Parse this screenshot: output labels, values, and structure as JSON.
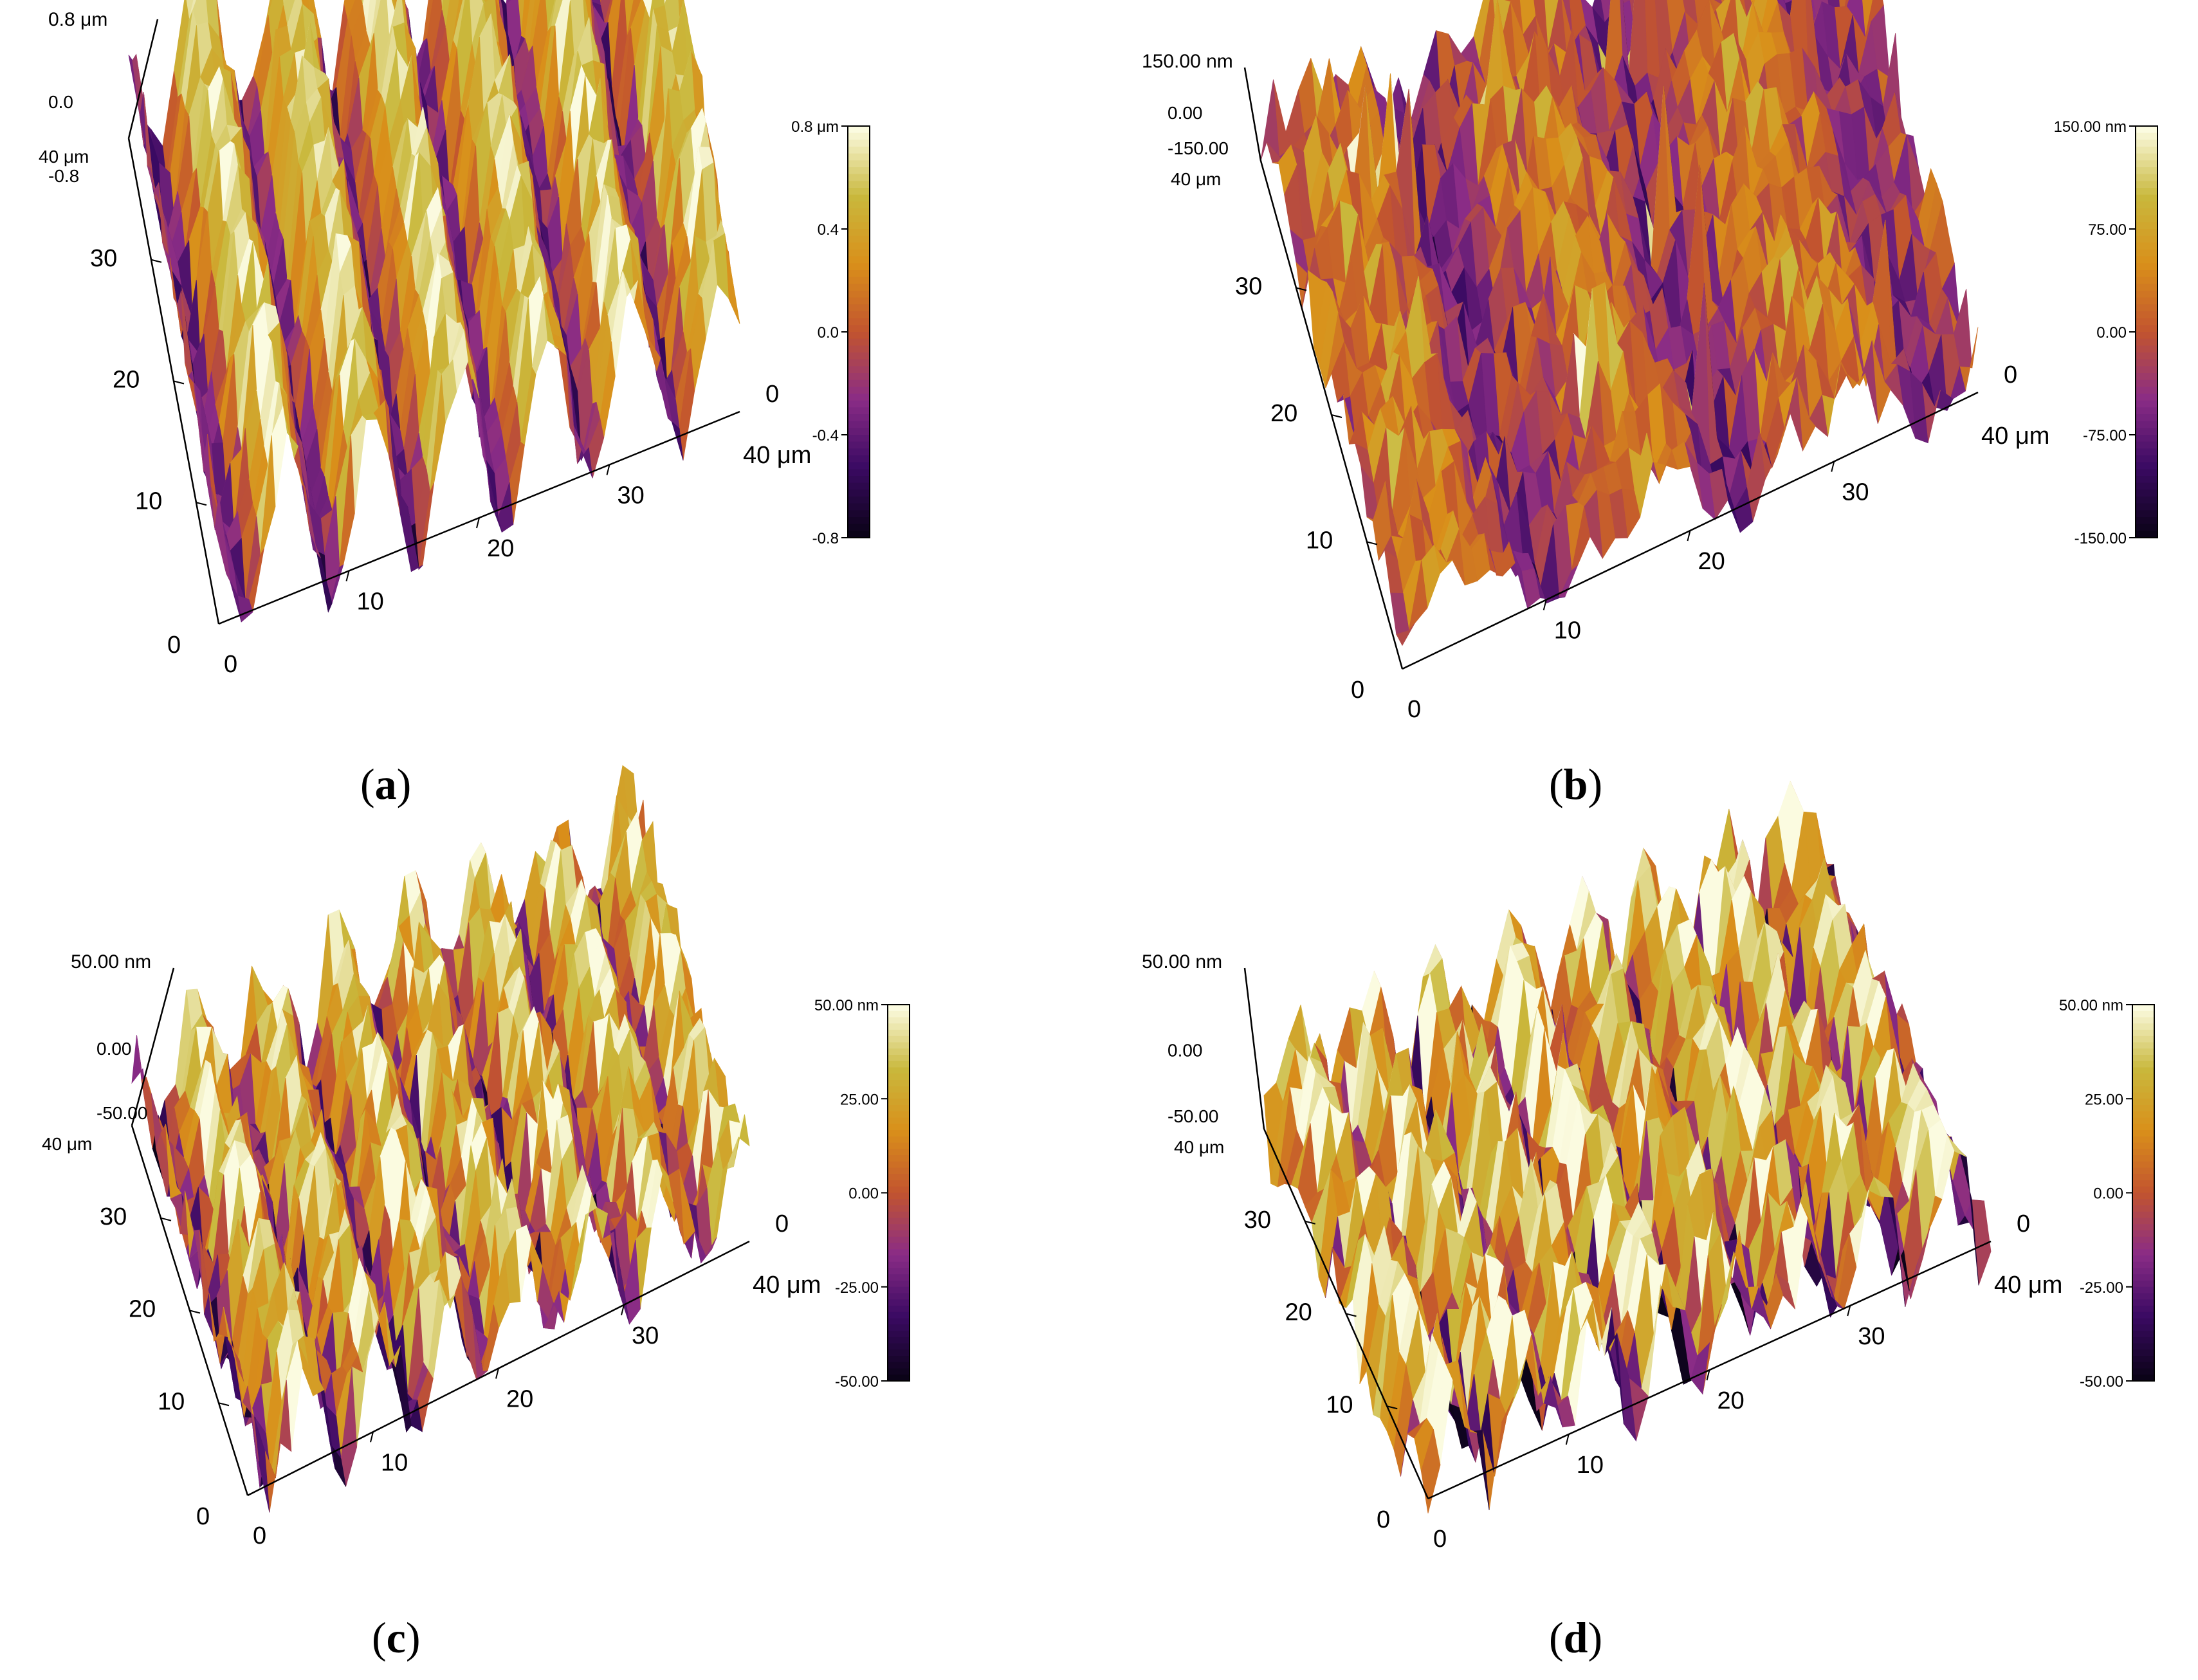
{
  "colors": {
    "axis": "#000000",
    "background": "#ffffff",
    "colormap": [
      "#0b0318",
      "#3b0a63",
      "#8a2c86",
      "#c2542f",
      "#d98f1a",
      "#c9b83c",
      "#fbfbe0"
    ]
  },
  "chart_data": [
    {
      "type": "surface",
      "panel": "a",
      "caption": {
        "open": "(",
        "letter": "a",
        "close": ")"
      },
      "z_axis": {
        "labels": [
          "0.8 μm",
          "0.0",
          "-0.8"
        ],
        "range": [
          -0.8,
          0.8
        ],
        "unit": "μm"
      },
      "y_axis": {
        "ticks": [
          "0",
          "10",
          "20",
          "30",
          "40 μm"
        ],
        "range": [
          0,
          40
        ],
        "unit": "μm"
      },
      "x_axis": {
        "ticks": [
          "0",
          "10",
          "20",
          "30",
          "40 μm"
        ],
        "x_far_zero": "0",
        "range": [
          0,
          40
        ],
        "unit": "μm"
      },
      "colorbar": {
        "labels": [
          "0.8 μm",
          "0.4",
          "0.0",
          "-0.4",
          "-0.8"
        ],
        "values": [
          0.8,
          0.4,
          0.0,
          -0.4,
          -0.8
        ]
      },
      "surface": {
        "ridge_count": 6,
        "relief": 1.0,
        "noise": 0.25,
        "mean": 0.55,
        "variability": 0.45
      }
    },
    {
      "type": "surface",
      "panel": "b",
      "caption": {
        "open": "(",
        "letter": "b",
        "close": ")"
      },
      "z_axis": {
        "labels": [
          "150.00 nm",
          "0.00",
          "-150.00"
        ],
        "range": [
          -150,
          150
        ],
        "unit": "nm"
      },
      "y_axis": {
        "ticks": [
          "0",
          "10",
          "20",
          "30",
          "40 μm"
        ],
        "range": [
          0,
          40
        ],
        "unit": "μm"
      },
      "x_axis": {
        "ticks": [
          "0",
          "10",
          "20",
          "30",
          "40 μm"
        ],
        "x_far_zero": "0",
        "range": [
          0,
          40
        ],
        "unit": "μm"
      },
      "colorbar": {
        "labels": [
          "150.00 nm",
          "75.00",
          "0.00",
          "-75.00",
          "-150.00"
        ],
        "values": [
          150,
          75,
          0,
          -75,
          -150
        ]
      },
      "surface": {
        "ridge_count": 3,
        "relief": 0.25,
        "noise": 0.35,
        "mean": 0.45,
        "variability": 0.2,
        "spikes": 14
      }
    },
    {
      "type": "surface",
      "panel": "c",
      "caption": {
        "open": "(",
        "letter": "c",
        "close": ")"
      },
      "z_axis": {
        "labels": [
          "50.00 nm",
          "0.00",
          "-50.00"
        ],
        "range": [
          -50,
          50
        ],
        "unit": "nm"
      },
      "y_axis": {
        "ticks": [
          "0",
          "10",
          "20",
          "30",
          "40 μm"
        ],
        "range": [
          0,
          40
        ],
        "unit": "μm"
      },
      "x_axis": {
        "ticks": [
          "0",
          "10",
          "20",
          "30",
          "40 μm"
        ],
        "x_far_zero": "0",
        "range": [
          0,
          40
        ],
        "unit": "μm"
      },
      "colorbar": {
        "labels": [
          "50.00 nm",
          "25.00",
          "0.00",
          "-25.00",
          "-50.00"
        ],
        "values": [
          50,
          25,
          0,
          -25,
          -50
        ]
      },
      "surface": {
        "ridge_count": 7,
        "relief": 0.6,
        "noise": 0.45,
        "mean": 0.55,
        "variability": 0.4
      }
    },
    {
      "type": "surface",
      "panel": "d",
      "caption": {
        "open": "(",
        "letter": "d",
        "close": ")"
      },
      "z_axis": {
        "labels": [
          "50.00 nm",
          "0.00",
          "-50.00"
        ],
        "range": [
          -50,
          50
        ],
        "unit": "nm"
      },
      "y_axis": {
        "ticks": [
          "0",
          "10",
          "20",
          "30",
          "40 μm"
        ],
        "range": [
          0,
          40
        ],
        "unit": "μm"
      },
      "x_axis": {
        "ticks": [
          "0",
          "10",
          "20",
          "30",
          "40 μm"
        ],
        "x_far_zero": "0",
        "range": [
          0,
          40
        ],
        "unit": "μm"
      },
      "colorbar": {
        "labels": [
          "50.00 nm",
          "25.00",
          "0.00",
          "-25.00",
          "-50.00"
        ],
        "values": [
          50,
          25,
          0,
          -25,
          -50
        ]
      },
      "surface": {
        "ridge_count": 8,
        "relief": 0.55,
        "noise": 0.6,
        "mean": 0.55,
        "variability": 0.45
      }
    }
  ]
}
